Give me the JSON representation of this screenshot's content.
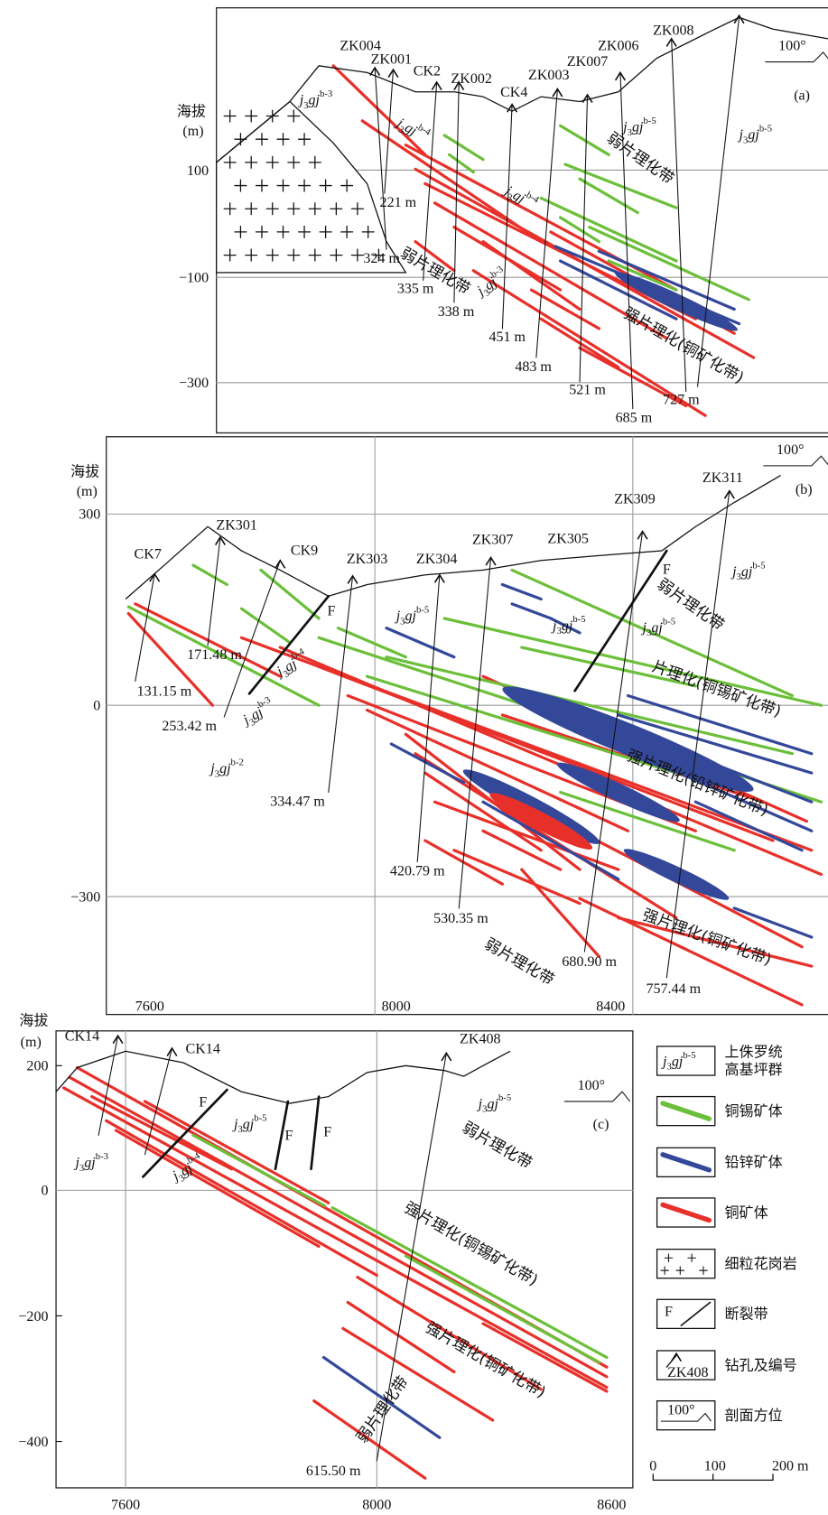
{
  "panel_a": {
    "label": "(a)",
    "azimuth": "100°",
    "elevation_title": "海拔",
    "elevation_unit": "(m)",
    "yticks": [
      "100",
      "−100",
      "−300"
    ],
    "drillholes": [
      {
        "name": "ZK004",
        "depth": "324 m"
      },
      {
        "name": "ZK001",
        "depth": "221 m"
      },
      {
        "name": "CK2",
        "depth": "335 m"
      },
      {
        "name": "ZK002",
        "depth": "338 m"
      },
      {
        "name": "CK4",
        "depth": "451 m"
      },
      {
        "name": "ZK003",
        "depth": "483 m"
      },
      {
        "name": "ZK007",
        "depth": "521 m"
      },
      {
        "name": "ZK006",
        "depth": "685 m"
      },
      {
        "name": "ZK008",
        "depth": "727 m"
      }
    ],
    "zones": [
      "弱片理化带",
      "弱片理化带",
      "强片理化(铜矿化带)"
    ],
    "strata": [
      {
        "j": "j",
        "sub": "3",
        "gj": "gj",
        "sup": "b-3"
      },
      {
        "j": "j",
        "sub": "3",
        "gj": "gj",
        "sup": "b-4"
      },
      {
        "j": "j",
        "sub": "3",
        "gj": "gj",
        "sup": "b-4"
      },
      {
        "j": "j",
        "sub": "3",
        "gj": "gj",
        "sup": "b-3"
      },
      {
        "j": "j",
        "sub": "3",
        "gj": "gj",
        "sup": "b-5"
      },
      {
        "j": "j",
        "sub": "3",
        "gj": "gj",
        "sup": "b-5"
      }
    ]
  },
  "panel_b": {
    "label": "(b)",
    "azimuth": "100°",
    "elevation_title": "海拔",
    "elevation_unit": "(m)",
    "yticks": [
      "300",
      "0",
      "−300"
    ],
    "xticks": [
      "7600",
      "8000",
      "8400"
    ],
    "drillholes": [
      {
        "name": "CK7",
        "depth": "131.15 m"
      },
      {
        "name": "ZK301",
        "depth": "171.48 m"
      },
      {
        "name": "CK9",
        "depth": "253.42 m"
      },
      {
        "name": "ZK303",
        "depth": "334.47 m"
      },
      {
        "name": "ZK304",
        "depth": "420.79 m"
      },
      {
        "name": "ZK307",
        "depth": "530.35 m"
      },
      {
        "name": "ZK305"
      },
      {
        "name": "ZK309",
        "depth": "680.90 m"
      },
      {
        "name": "ZK311",
        "depth": "757.44 m"
      }
    ],
    "faults": [
      "F",
      "F"
    ],
    "zones": [
      "弱片理化带",
      "片理化(铜锡矿化带)",
      "强片理化(铅锌矿化带)",
      "强片理化(铜矿化带)",
      "弱片理化带"
    ],
    "strata": [
      {
        "j": "j",
        "sub": "3",
        "gj": "gj",
        "sup": "b-5"
      },
      {
        "j": "j",
        "sub": "3",
        "gj": "gj",
        "sup": "b-5"
      },
      {
        "j": "j",
        "sub": "3",
        "gj": "gj",
        "sup": "b-5"
      },
      {
        "j": "j",
        "sub": "3",
        "gj": "gj",
        "sup": "b-5"
      },
      {
        "j": "j",
        "sub": "3",
        "gj": "gj",
        "sup": "b-4"
      },
      {
        "j": "j",
        "sub": "3",
        "gj": "gj",
        "sup": "b-3"
      },
      {
        "j": "j",
        "sub": "3",
        "gj": "gj",
        "sup": "b-2"
      }
    ]
  },
  "panel_c": {
    "label": "(c)",
    "azimuth": "100°",
    "elevation_title": "海拔",
    "elevation_unit": "(m)",
    "yticks": [
      "200",
      "0",
      "−200",
      "−400"
    ],
    "xticks": [
      "7600",
      "8000",
      "8600"
    ],
    "drillholes": [
      {
        "name": "CK14"
      },
      {
        "name": "CK14"
      },
      {
        "name": "ZK408",
        "depth": "615.50 m"
      }
    ],
    "faults": [
      "F",
      "F",
      "F"
    ],
    "zones": [
      "弱片理化带",
      "强片理化(铜锡矿化带)",
      "强片理化(铜矿化带)",
      "弱片理化带"
    ],
    "strata": [
      {
        "j": "j",
        "sub": "3",
        "gj": "gj",
        "sup": "b-3"
      },
      {
        "j": "j",
        "sub": "3",
        "gj": "gj",
        "sup": "b-5"
      },
      {
        "j": "j",
        "sub": "3",
        "gj": "gj",
        "sup": "b-4"
      },
      {
        "j": "j",
        "sub": "3",
        "gj": "gj",
        "sup": "b-5"
      }
    ]
  },
  "legend": {
    "items": [
      {
        "text": [
          "上侏罗统",
          "高基坪群"
        ],
        "symbol": {
          "j": "j",
          "sub": "3",
          "gj": "gj",
          "sup": "b-5"
        }
      },
      {
        "text": [
          "铜锡矿体"
        ]
      },
      {
        "text": [
          "铅锌矿体"
        ]
      },
      {
        "text": [
          "铜矿体"
        ]
      },
      {
        "text": [
          "细粒花岗岩"
        ]
      },
      {
        "text": [
          "断裂带"
        ],
        "symbol": "F"
      },
      {
        "text": [
          "钻孔及编号"
        ],
        "symbol": "ZK408"
      },
      {
        "text": [
          "剖面方位"
        ],
        "symbol": "100°"
      }
    ],
    "scale": [
      "0",
      "100",
      "200 m"
    ]
  }
}
